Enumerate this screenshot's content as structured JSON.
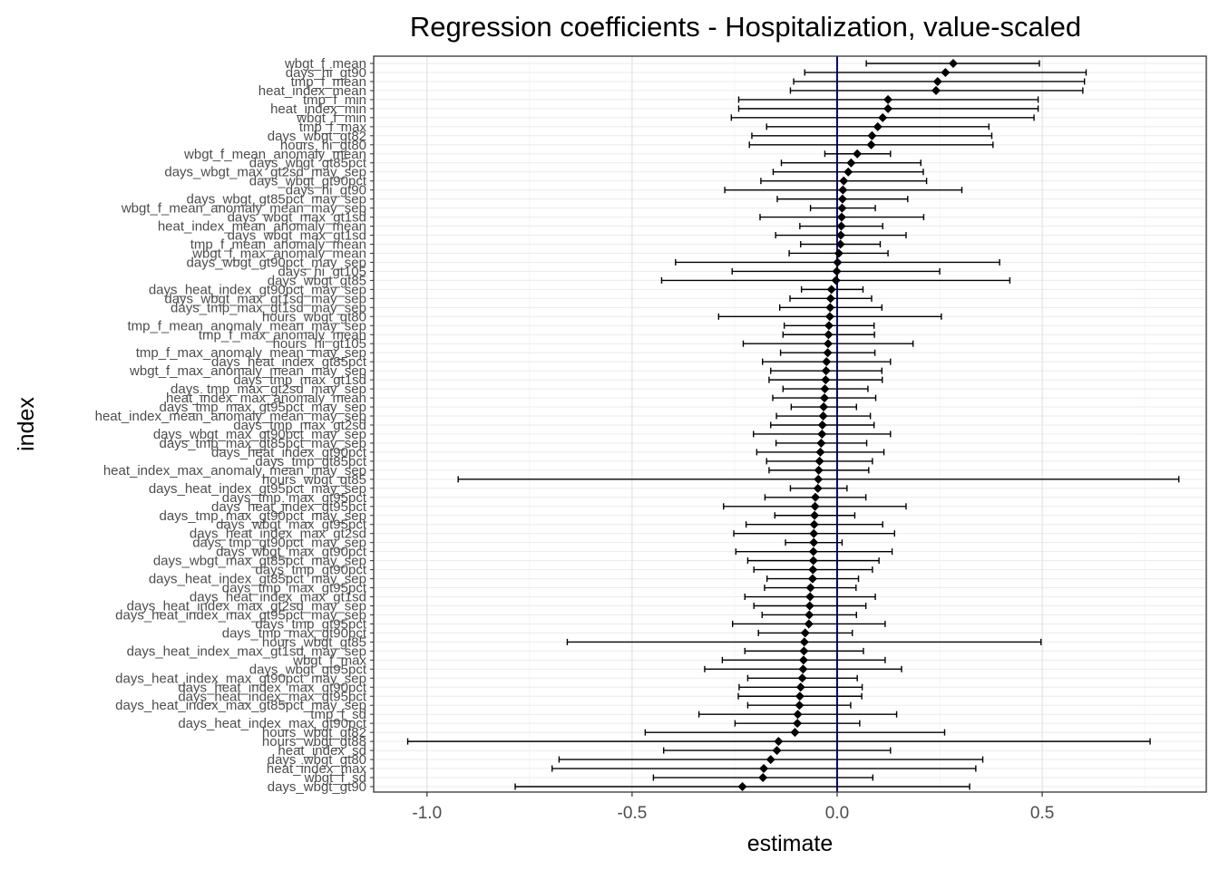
{
  "chart_data": {
    "type": "forest",
    "title": "Regression coefficients - Hospitalization, value-scaled",
    "xlabel": "estimate",
    "ylabel": "index",
    "xlim": [
      -1.13,
      0.9
    ],
    "x_ticks": [
      -1.0,
      -0.5,
      0.0,
      0.5
    ],
    "x_tick_labels": [
      "-1.0",
      "-0.5",
      "0.0",
      "0.5"
    ],
    "reference_line": 0.0,
    "reference_color": "#00008b",
    "point_color": "#000000",
    "grid": true,
    "rows": [
      {
        "label": "wbgt_f_mean",
        "estimate": 0.283,
        "lower": 0.071,
        "upper": 0.493
      },
      {
        "label": "days_hi_gt90",
        "estimate": 0.264,
        "lower": -0.079,
        "upper": 0.607
      },
      {
        "label": "tmp_f_mean",
        "estimate": 0.245,
        "lower": -0.106,
        "upper": 0.603
      },
      {
        "label": "heat_index_mean",
        "estimate": 0.241,
        "lower": -0.114,
        "upper": 0.599
      },
      {
        "label": "tmp_f_min",
        "estimate": 0.124,
        "lower": -0.24,
        "upper": 0.49
      },
      {
        "label": "heat_index_min",
        "estimate": 0.124,
        "lower": -0.24,
        "upper": 0.49
      },
      {
        "label": "wbgt_f_min",
        "estimate": 0.111,
        "lower": -0.258,
        "upper": 0.48
      },
      {
        "label": "tmp_f_max",
        "estimate": 0.099,
        "lower": -0.172,
        "upper": 0.37
      },
      {
        "label": "days_wbgt_gt82",
        "estimate": 0.085,
        "lower": -0.208,
        "upper": 0.377
      },
      {
        "label": "hours_hi_gt80",
        "estimate": 0.083,
        "lower": -0.214,
        "upper": 0.38
      },
      {
        "label": "wbgt_f_mean_anomaly_mean",
        "estimate": 0.049,
        "lower": -0.03,
        "upper": 0.13
      },
      {
        "label": "days_wbgt_gt85pct",
        "estimate": 0.034,
        "lower": -0.136,
        "upper": 0.204
      },
      {
        "label": "days_wbgt_max_gt2sd_may_sep",
        "estimate": 0.027,
        "lower": -0.156,
        "upper": 0.21
      },
      {
        "label": "days_wbgt_gt90pct",
        "estimate": 0.016,
        "lower": -0.186,
        "upper": 0.218
      },
      {
        "label": "days_hi_gt90",
        "estimate": 0.014,
        "lower": -0.274,
        "upper": 0.304
      },
      {
        "label": "days_wbgt_gt85pct_may_sep",
        "estimate": 0.013,
        "lower": -0.146,
        "upper": 0.172
      },
      {
        "label": "wbgt_f_mean_anomaly_mean_may_sep",
        "estimate": 0.012,
        "lower": -0.065,
        "upper": 0.093
      },
      {
        "label": "days_wbgt_max_gt1sd",
        "estimate": 0.011,
        "lower": -0.188,
        "upper": 0.211
      },
      {
        "label": "heat_index_mean_anomaly_mean",
        "estimate": 0.01,
        "lower": -0.091,
        "upper": 0.111
      },
      {
        "label": "days_wbgt_max_gt1sd",
        "estimate": 0.009,
        "lower": -0.15,
        "upper": 0.168
      },
      {
        "label": "tmp_f_mean_anomaly_mean",
        "estimate": 0.008,
        "lower": -0.089,
        "upper": 0.105
      },
      {
        "label": "wbgt_f_max_anomaly_mean",
        "estimate": 0.004,
        "lower": -0.117,
        "upper": 0.124
      },
      {
        "label": "days_wbgt_gt90pct_may_sep",
        "estimate": 0.001,
        "lower": -0.394,
        "upper": 0.396
      },
      {
        "label": "days_hi_gt105",
        "estimate": -0.001,
        "lower": -0.256,
        "upper": 0.25
      },
      {
        "label": "days_wbgt_gt85",
        "estimate": -0.003,
        "lower": -0.428,
        "upper": 0.421
      },
      {
        "label": "days_heat_index_gt90pct_may_sep",
        "estimate": -0.014,
        "lower": -0.087,
        "upper": 0.063
      },
      {
        "label": "days_wbgt_max_gt1sd_may_sep",
        "estimate": -0.016,
        "lower": -0.115,
        "upper": 0.084
      },
      {
        "label": "days_tmp_max_gt1sd_may_sep",
        "estimate": -0.017,
        "lower": -0.14,
        "upper": 0.109
      },
      {
        "label": "hours_wbgt_gt80",
        "estimate": -0.018,
        "lower": -0.289,
        "upper": 0.254
      },
      {
        "label": "tmp_f_mean_anomaly_mean_may_sep",
        "estimate": -0.02,
        "lower": -0.129,
        "upper": 0.09
      },
      {
        "label": "tmp_f_max_anomaly_mean",
        "estimate": -0.021,
        "lower": -0.132,
        "upper": 0.091
      },
      {
        "label": "hours_hi_gt105",
        "estimate": -0.022,
        "lower": -0.229,
        "upper": 0.185
      },
      {
        "label": "tmp_f_max_anomaly_mean_may_sep",
        "estimate": -0.023,
        "lower": -0.138,
        "upper": 0.092
      },
      {
        "label": "days_heat_index_gt85pct",
        "estimate": -0.026,
        "lower": -0.182,
        "upper": 0.13
      },
      {
        "label": "wbgt_f_max_anomaly_mean_may_sep",
        "estimate": -0.027,
        "lower": -0.162,
        "upper": 0.109
      },
      {
        "label": "days_tmp_max_gt1sd",
        "estimate": -0.028,
        "lower": -0.166,
        "upper": 0.11
      },
      {
        "label": "days_tmp_max_gt2sd_may_sep",
        "estimate": -0.03,
        "lower": -0.132,
        "upper": 0.075
      },
      {
        "label": "heat_index_max_anomaly_mean",
        "estimate": -0.031,
        "lower": -0.157,
        "upper": 0.094
      },
      {
        "label": "days_tmp_max_gt95pct_may_sep",
        "estimate": -0.033,
        "lower": -0.112,
        "upper": 0.047
      },
      {
        "label": "heat_index_mean_anomaly_mean_may_sep",
        "estimate": -0.034,
        "lower": -0.148,
        "upper": 0.081
      },
      {
        "label": "days_tmp_max_gt2sd",
        "estimate": -0.036,
        "lower": -0.162,
        "upper": 0.09
      },
      {
        "label": "days_wbgt_max_gt90pct_may_sep",
        "estimate": -0.037,
        "lower": -0.204,
        "upper": 0.13
      },
      {
        "label": "days_tmp_max_gt85pct_may_sep",
        "estimate": -0.039,
        "lower": -0.149,
        "upper": 0.072
      },
      {
        "label": "days_heat_index_gt90pct",
        "estimate": -0.041,
        "lower": -0.196,
        "upper": 0.114
      },
      {
        "label": "days_tmp_gt85pct",
        "estimate": -0.043,
        "lower": -0.172,
        "upper": 0.086
      },
      {
        "label": "heat_index_max_anomaly_mean_may_sep",
        "estimate": -0.045,
        "lower": -0.166,
        "upper": 0.077
      },
      {
        "label": "hours_wbgt_gt85",
        "estimate": -0.046,
        "lower": -0.924,
        "upper": 0.833
      },
      {
        "label": "days_heat_index_gt95pct_may_sep",
        "estimate": -0.047,
        "lower": -0.114,
        "upper": 0.024
      },
      {
        "label": "days_tmp_max_gt95pct",
        "estimate": -0.053,
        "lower": -0.176,
        "upper": 0.07
      },
      {
        "label": "days_heat_index_gt95pct",
        "estimate": -0.054,
        "lower": -0.277,
        "upper": 0.168
      },
      {
        "label": "days_tmp_max_gt90pct_may_sep",
        "estimate": -0.055,
        "lower": -0.152,
        "upper": 0.043
      },
      {
        "label": "days_wbgt_max_gt95pct",
        "estimate": -0.056,
        "lower": -0.222,
        "upper": 0.111
      },
      {
        "label": "days_heat_index_max_gt2sd",
        "estimate": -0.057,
        "lower": -0.252,
        "upper": 0.14
      },
      {
        "label": "days_tmp_gt90pct_may_sep",
        "estimate": -0.057,
        "lower": -0.126,
        "upper": 0.012
      },
      {
        "label": "days_wbgt_max_gt90pct",
        "estimate": -0.058,
        "lower": -0.247,
        "upper": 0.134
      },
      {
        "label": "days_wbgt_max_gt85pct_may_sep",
        "estimate": -0.058,
        "lower": -0.218,
        "upper": 0.102
      },
      {
        "label": "days_tmp_gt90pct",
        "estimate": -0.059,
        "lower": -0.203,
        "upper": 0.086
      },
      {
        "label": "days_heat_index_gt85pct_may_sep",
        "estimate": -0.06,
        "lower": -0.171,
        "upper": 0.052
      },
      {
        "label": "days_tmp_max_gt95pct",
        "estimate": -0.065,
        "lower": -0.177,
        "upper": 0.046
      },
      {
        "label": "days_heat_index_max_gt1sd",
        "estimate": -0.066,
        "lower": -0.225,
        "upper": 0.093
      },
      {
        "label": "days_heat_index_max_gt2sd_may_sep",
        "estimate": -0.067,
        "lower": -0.203,
        "upper": 0.07
      },
      {
        "label": "days_heat_index_max_gt95pct_may_sep",
        "estimate": -0.068,
        "lower": -0.183,
        "upper": 0.047
      },
      {
        "label": "days_tmp_gt95pct",
        "estimate": -0.069,
        "lower": -0.255,
        "upper": 0.117
      },
      {
        "label": "days_tmp_max_gt90pct",
        "estimate": -0.078,
        "lower": -0.192,
        "upper": 0.037
      },
      {
        "label": "hours_wbgt_gt85",
        "estimate": -0.08,
        "lower": -0.658,
        "upper": 0.497
      },
      {
        "label": "days_heat_index_max_gt1sd_may_sep",
        "estimate": -0.081,
        "lower": -0.225,
        "upper": 0.064
      },
      {
        "label": "wbgt_f_max",
        "estimate": -0.082,
        "lower": -0.28,
        "upper": 0.117
      },
      {
        "label": "days_wbgt_gt95pct",
        "estimate": -0.083,
        "lower": -0.323,
        "upper": 0.157
      },
      {
        "label": "days_heat_index_max_gt90pct_may_sep",
        "estimate": -0.085,
        "lower": -0.218,
        "upper": 0.049
      },
      {
        "label": "days_heat_index_max_gt90pct",
        "estimate": -0.089,
        "lower": -0.239,
        "upper": 0.061
      },
      {
        "label": "days_heat_index_max_gt95pct",
        "estimate": -0.091,
        "lower": -0.241,
        "upper": 0.06
      },
      {
        "label": "days_heat_index_max_gt85pct_may_sep",
        "estimate": -0.092,
        "lower": -0.218,
        "upper": 0.033
      },
      {
        "label": "tmp_f_sd",
        "estimate": -0.096,
        "lower": -0.337,
        "upper": 0.145
      },
      {
        "label": "days_heat_index_max_gt90pct",
        "estimate": -0.097,
        "lower": -0.249,
        "upper": 0.055
      },
      {
        "label": "hours_wbgt_gt82",
        "estimate": -0.103,
        "lower": -0.468,
        "upper": 0.262
      },
      {
        "label": "hours_wbgt_gt88",
        "estimate": -0.143,
        "lower": -1.047,
        "upper": 0.763
      },
      {
        "label": "heat_index_sd",
        "estimate": -0.147,
        "lower": -0.423,
        "upper": 0.13
      },
      {
        "label": "days_wbgt_gt80",
        "estimate": -0.162,
        "lower": -0.678,
        "upper": 0.355
      },
      {
        "label": "heat_index_max",
        "estimate": -0.179,
        "lower": -0.695,
        "upper": 0.338
      },
      {
        "label": "wbgt_f_sd",
        "estimate": -0.181,
        "lower": -0.448,
        "upper": 0.087
      },
      {
        "label": "days_wbgt_gt90",
        "estimate": -0.231,
        "lower": -0.785,
        "upper": 0.323
      }
    ]
  }
}
